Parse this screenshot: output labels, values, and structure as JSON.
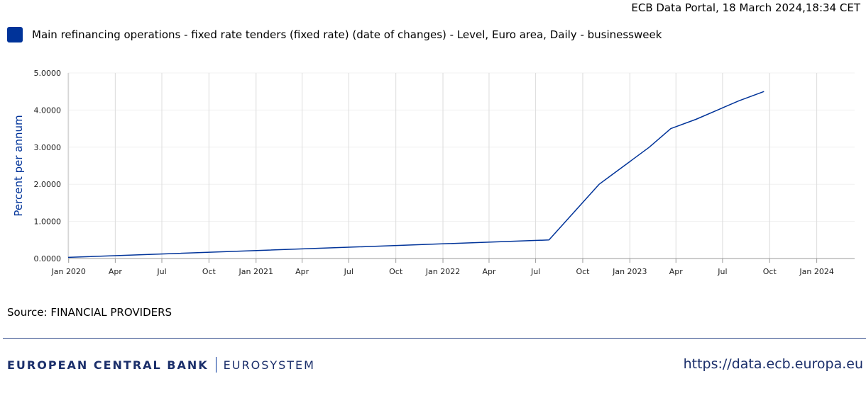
{
  "header": {
    "timestamp": "ECB Data Portal, 18 March 2024,18:34 CET"
  },
  "colors": {
    "series": "#003399",
    "brand": "#1b2f6b",
    "axis_title": "#003399",
    "grid": "#dcdcdc"
  },
  "legend": {
    "label": "Main refinancing operations - fixed rate tenders (fixed rate) (date of changes) - Level, Euro area, Daily - businessweek"
  },
  "chart_data": {
    "type": "line",
    "title": "",
    "ylabel": "Percent per annum",
    "xlabel": "",
    "ylim": [
      0,
      5
    ],
    "xlim": [
      "2019-12-31",
      "2024-03-15"
    ],
    "yticks": [
      "0.0000",
      "1.0000",
      "2.0000",
      "3.0000",
      "4.0000",
      "5.0000"
    ],
    "xticks": [
      {
        "date": "2020-01-01",
        "label": "Jan 2020"
      },
      {
        "date": "2020-04-01",
        "label": "Apr"
      },
      {
        "date": "2020-07-01",
        "label": "Jul"
      },
      {
        "date": "2020-10-01",
        "label": "Oct"
      },
      {
        "date": "2021-01-01",
        "label": "Jan 2021"
      },
      {
        "date": "2021-04-01",
        "label": "Apr"
      },
      {
        "date": "2021-07-01",
        "label": "Jul"
      },
      {
        "date": "2021-10-01",
        "label": "Oct"
      },
      {
        "date": "2022-01-01",
        "label": "Jan 2022"
      },
      {
        "date": "2022-04-01",
        "label": "Apr"
      },
      {
        "date": "2022-07-01",
        "label": "Jul"
      },
      {
        "date": "2022-10-01",
        "label": "Oct"
      },
      {
        "date": "2023-01-01",
        "label": "Jan 2023"
      },
      {
        "date": "2023-04-01",
        "label": "Apr"
      },
      {
        "date": "2023-07-01",
        "label": "Jul"
      },
      {
        "date": "2023-10-01",
        "label": "Oct"
      },
      {
        "date": "2024-01-01",
        "label": "Jan 2024"
      }
    ],
    "series": [
      {
        "name": "Main refinancing operations - fixed rate tenders (fixed rate) (date of changes) - Level, Euro area, Daily - businessweek",
        "points": [
          {
            "x": "2019-12-31",
            "y": 0.03
          },
          {
            "x": "2022-07-27",
            "y": 0.5
          },
          {
            "x": "2022-09-14",
            "y": 1.25
          },
          {
            "x": "2022-11-02",
            "y": 2.0
          },
          {
            "x": "2022-12-21",
            "y": 2.5
          },
          {
            "x": "2023-02-08",
            "y": 3.0
          },
          {
            "x": "2023-03-22",
            "y": 3.5
          },
          {
            "x": "2023-05-10",
            "y": 3.75
          },
          {
            "x": "2023-06-21",
            "y": 4.0
          },
          {
            "x": "2023-08-02",
            "y": 4.25
          },
          {
            "x": "2023-09-20",
            "y": 4.5
          }
        ]
      }
    ]
  },
  "source": {
    "text": "Source: FINANCIAL PROVIDERS"
  },
  "footer": {
    "bank_name": "EUROPEAN CENTRAL BANK",
    "eurosystem": "EUROSYSTEM",
    "url": "https://data.ecb.europa.eu"
  }
}
